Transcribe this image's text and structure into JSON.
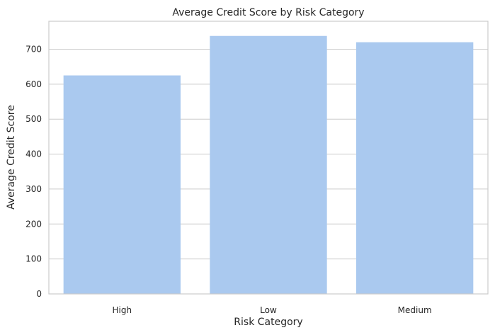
{
  "chart_data": {
    "type": "bar",
    "title": "Average Credit Score by Risk Category",
    "xlabel": "Risk Category",
    "ylabel": "Average Credit Score",
    "categories": [
      "High",
      "Low",
      "Medium"
    ],
    "values": [
      625,
      738,
      720
    ],
    "ylim": [
      0,
      780
    ],
    "yticks": [
      0,
      100,
      200,
      300,
      400,
      500,
      600,
      700
    ],
    "grid": true,
    "bar_color": "#aac9ef",
    "grid_color": "#cccccc",
    "text_color": "#262626"
  }
}
